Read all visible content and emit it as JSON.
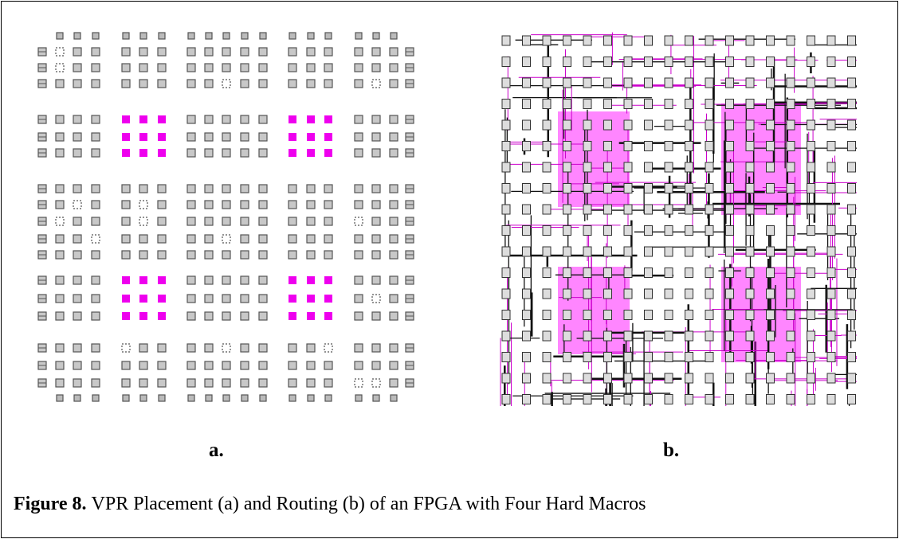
{
  "panels": [
    {
      "label": "a."
    },
    {
      "label": "b."
    }
  ],
  "caption": {
    "label": "Figure 8.",
    "text": "VPR Placement (a) and Routing (b) of an FPGA with Four Hard Macros"
  }
}
